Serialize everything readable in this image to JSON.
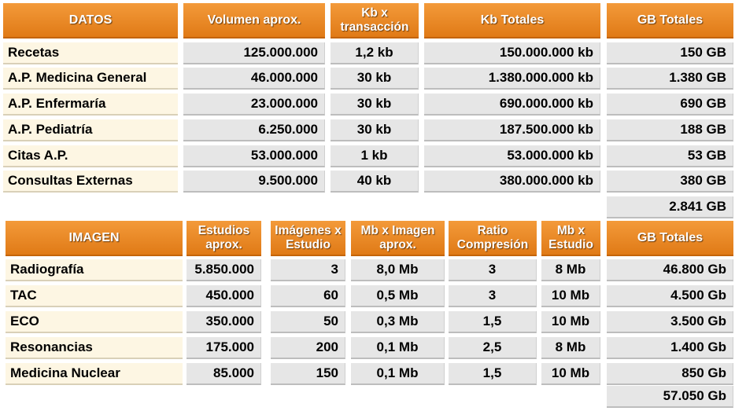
{
  "datos": {
    "headers": [
      "DATOS",
      "Volumen aprox.",
      "Kb x transacción",
      "Kb Totales",
      "GB Totales"
    ],
    "rows": [
      {
        "name": "Recetas",
        "volumen": "125.000.000",
        "kb_trans": "1,2 kb",
        "kb_totales": "150.000.000 kb",
        "gb_totales": "150 GB"
      },
      {
        "name": "A.P. Medicina General",
        "volumen": "46.000.000",
        "kb_trans": "30 kb",
        "kb_totales": "1.380.000.000 kb",
        "gb_totales": "1.380 GB"
      },
      {
        "name": "A.P. Enfermaría",
        "volumen": "23.000.000",
        "kb_trans": "30 kb",
        "kb_totales": "690.000.000 kb",
        "gb_totales": "690 GB"
      },
      {
        "name": "A.P. Pediatría",
        "volumen": "6.250.000",
        "kb_trans": "30 kb",
        "kb_totales": "187.500.000 kb",
        "gb_totales": "188 GB"
      },
      {
        "name": "Citas A.P.",
        "volumen": "53.000.000",
        "kb_trans": "1 kb",
        "kb_totales": "53.000.000 kb",
        "gb_totales": "53 GB"
      },
      {
        "name": "Consultas Externas",
        "volumen": "9.500.000",
        "kb_trans": "40 kb",
        "kb_totales": "380.000.000 kb",
        "gb_totales": "380 GB"
      }
    ],
    "total": "2.841 GB"
  },
  "imagen": {
    "headers": [
      "IMAGEN",
      "Estudios aprox.",
      "Imágenes x Estudio",
      "Mb x Imagen aprox.",
      "Ratio Compresión",
      "Mb x Estudio",
      "GB Totales"
    ],
    "rows": [
      {
        "name": "Radiografía",
        "estudios": "5.850.000",
        "imagenes": "3",
        "mb_imagen": "8,0 Mb",
        "ratio": "3",
        "mb_estudio": "8 Mb",
        "gb_totales": "46.800 Gb"
      },
      {
        "name": "TAC",
        "estudios": "450.000",
        "imagenes": "60",
        "mb_imagen": "0,5 Mb",
        "ratio": "3",
        "mb_estudio": "10 Mb",
        "gb_totales": "4.500 Gb"
      },
      {
        "name": "ECO",
        "estudios": "350.000",
        "imagenes": "50",
        "mb_imagen": "0,3 Mb",
        "ratio": "1,5",
        "mb_estudio": "10 Mb",
        "gb_totales": "3.500 Gb"
      },
      {
        "name": "Resonancias",
        "estudios": "175.000",
        "imagenes": "200",
        "mb_imagen": "0,1 Mb",
        "ratio": "2,5",
        "mb_estudio": "8 Mb",
        "gb_totales": "1.400 Gb"
      },
      {
        "name": "Medicina Nuclear",
        "estudios": "85.000",
        "imagenes": "150",
        "mb_imagen": "0,1 Mb",
        "ratio": "1,5",
        "mb_estudio": "10 Mb",
        "gb_totales": "850 Gb"
      }
    ],
    "total": "57.050 Gb"
  },
  "colors": {
    "header_orange": "#e07a16",
    "label_bg": "#fdf6e3",
    "value_bg": "#e6e6e6"
  }
}
